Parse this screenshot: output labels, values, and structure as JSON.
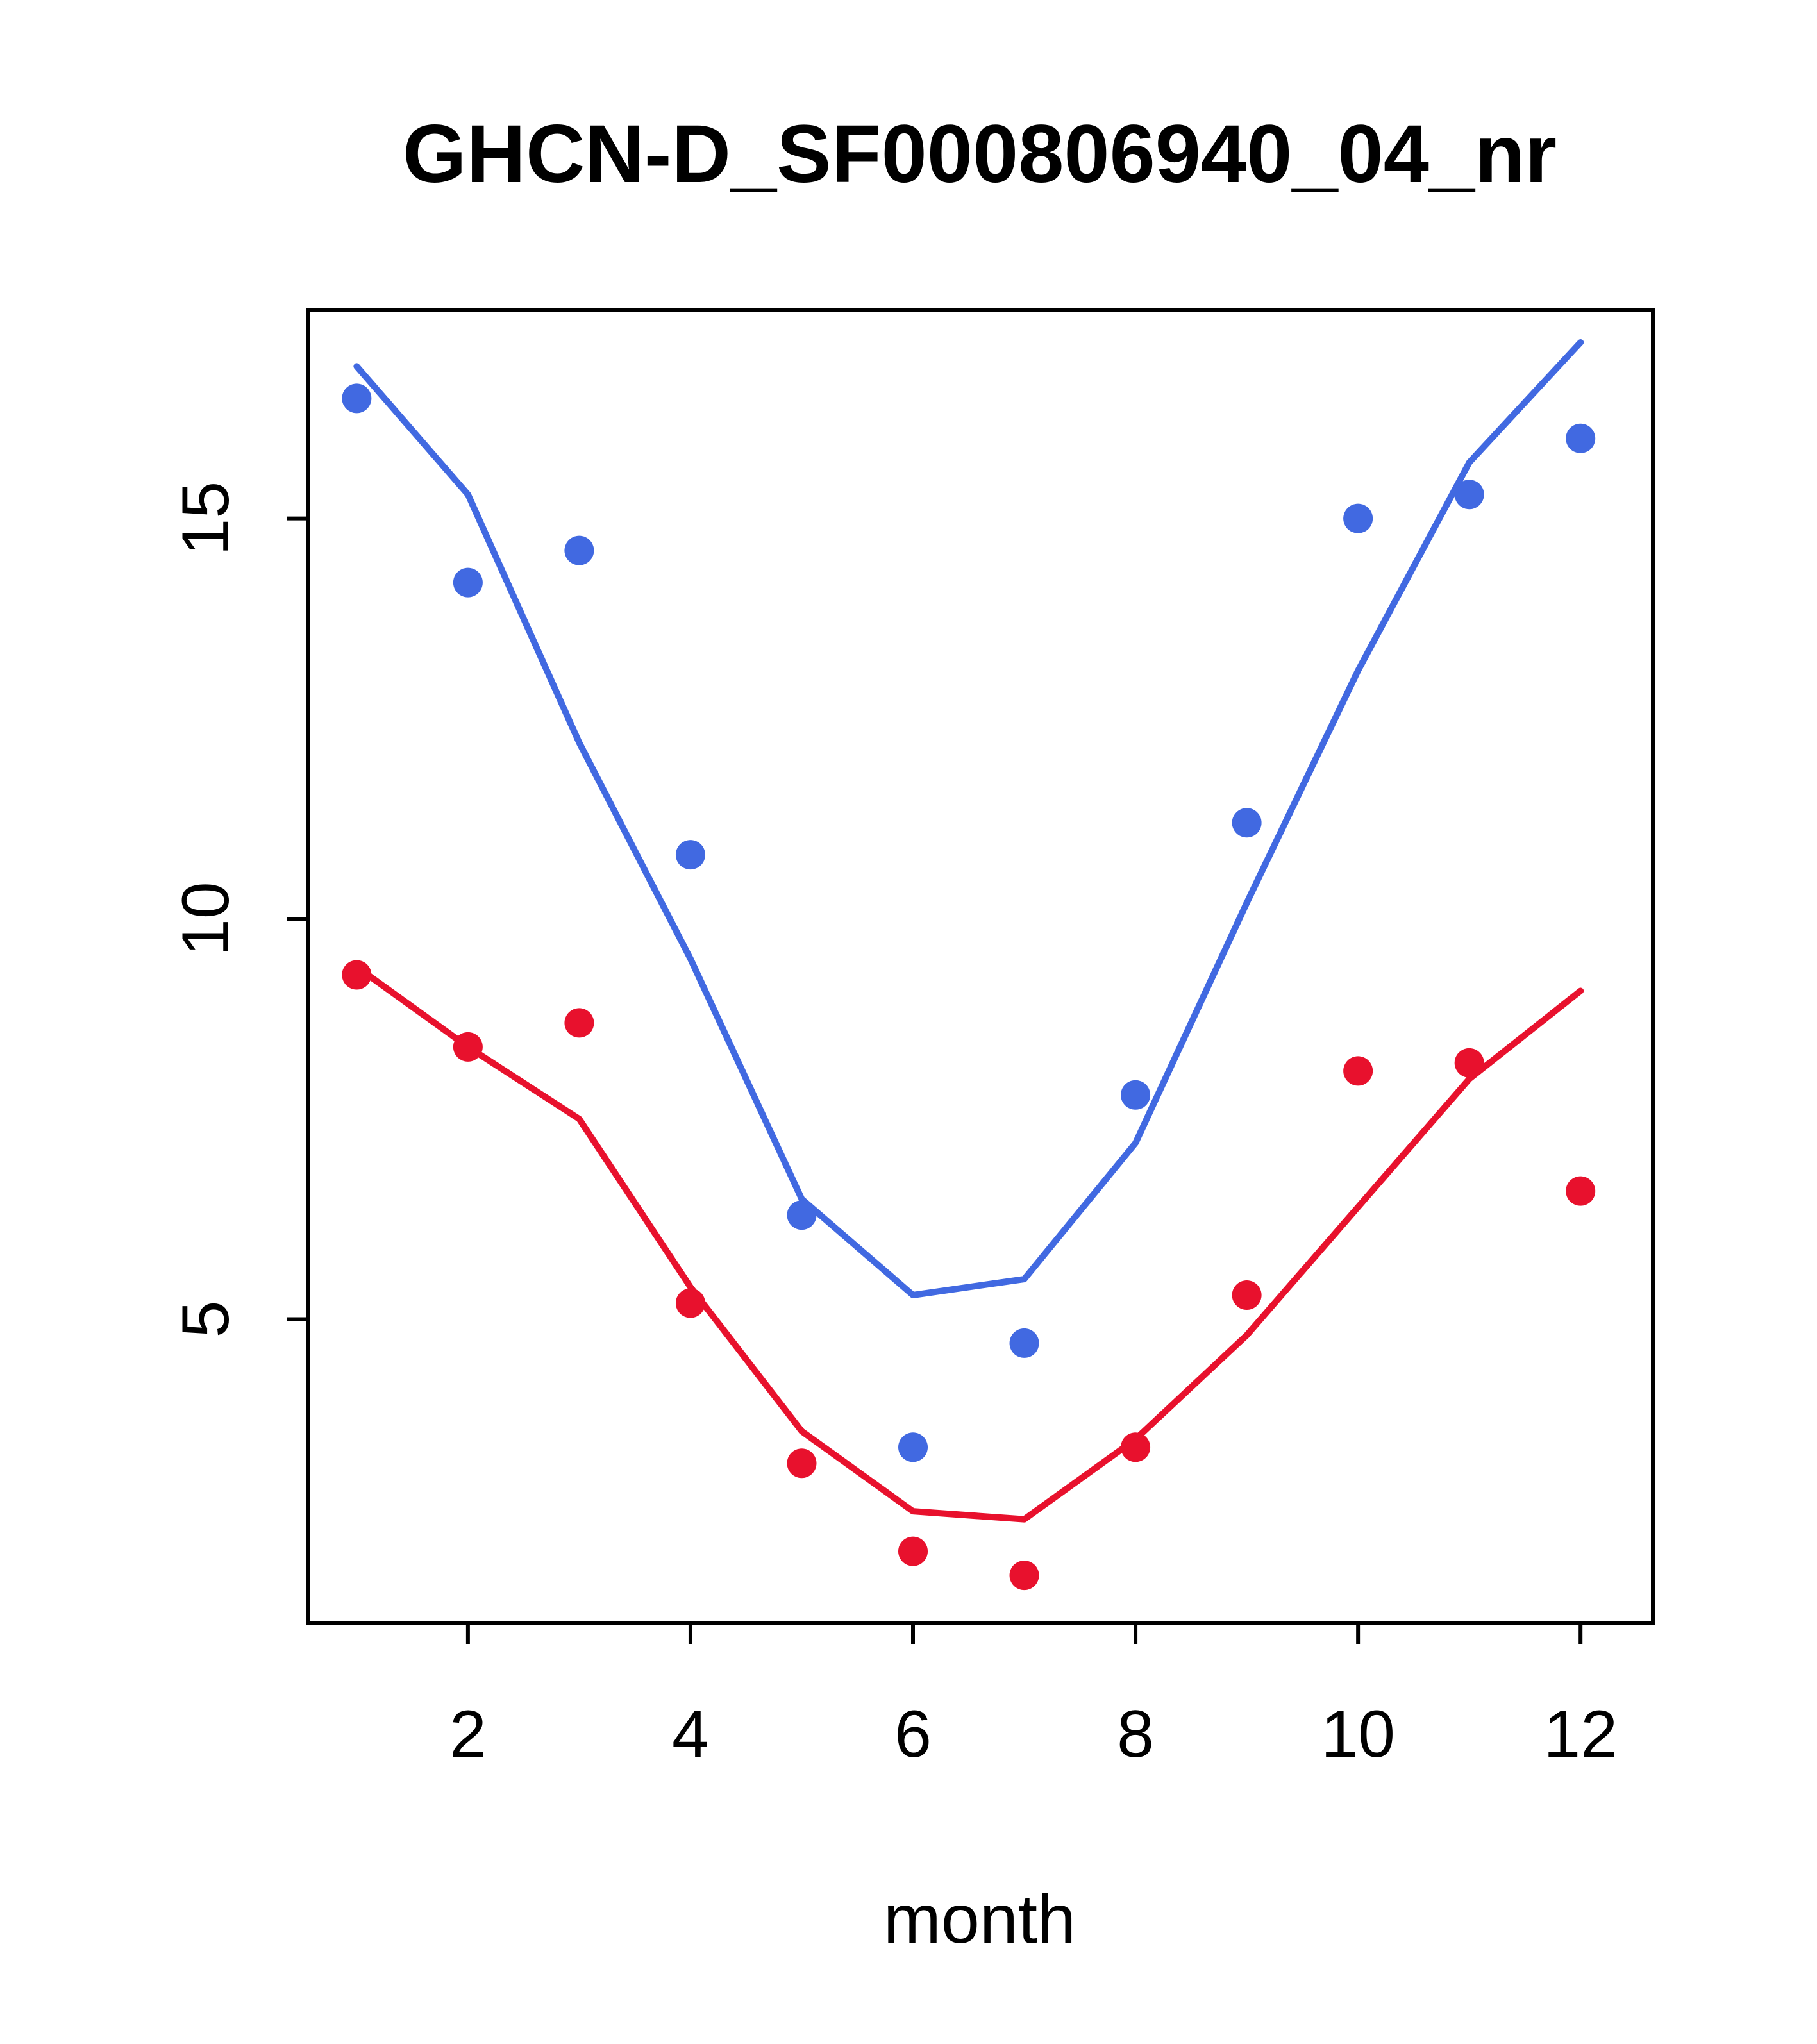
{
  "title": "GHCN-D_SF000806940_04_nr",
  "axes": {
    "xlabel": "month",
    "x_ticks": [
      2,
      4,
      6,
      8,
      10,
      12
    ],
    "y_ticks": [
      5,
      10,
      15
    ],
    "xlim": [
      0.56,
      12.65
    ],
    "ylim": [
      1.2,
      17.6
    ],
    "axis_color": "#000000"
  },
  "colors": {
    "blue_series": "#4169e1",
    "red_series": "#e8112d",
    "background": "#ffffff"
  },
  "chart_data": {
    "type": "scatter",
    "title": "GHCN-D_SF000806940_04_nr",
    "xlabel": "month",
    "ylabel": "",
    "x": [
      1,
      2,
      3,
      4,
      5,
      6,
      7,
      8,
      9,
      10,
      11,
      12
    ],
    "x_ticks": [
      2,
      4,
      6,
      8,
      10,
      12
    ],
    "y_ticks": [
      5,
      10,
      15
    ],
    "xlim": [
      0.56,
      12.65
    ],
    "ylim": [
      1.2,
      17.6
    ],
    "grid": false,
    "legend": "none",
    "series": [
      {
        "name": "blue-points",
        "style": "points",
        "color": "#4169e1",
        "values": [
          16.5,
          14.2,
          14.6,
          10.8,
          6.3,
          3.4,
          4.7,
          7.8,
          11.2,
          15.0,
          15.3,
          16.0
        ]
      },
      {
        "name": "blue-line",
        "style": "line",
        "color": "#4169e1",
        "values": [
          16.9,
          15.3,
          12.2,
          9.5,
          6.5,
          5.3,
          5.5,
          7.2,
          10.2,
          13.1,
          15.7,
          17.2
        ]
      },
      {
        "name": "red-points",
        "style": "points",
        "color": "#e8112d",
        "values": [
          9.3,
          8.4,
          8.7,
          5.2,
          3.2,
          2.1,
          1.8,
          3.4,
          5.3,
          8.1,
          8.2,
          6.6
        ]
      },
      {
        "name": "red-line",
        "style": "line",
        "color": "#e8112d",
        "values": [
          9.4,
          8.4,
          7.5,
          5.4,
          3.6,
          2.6,
          2.5,
          3.5,
          4.8,
          6.4,
          8.0,
          9.1
        ]
      }
    ]
  }
}
